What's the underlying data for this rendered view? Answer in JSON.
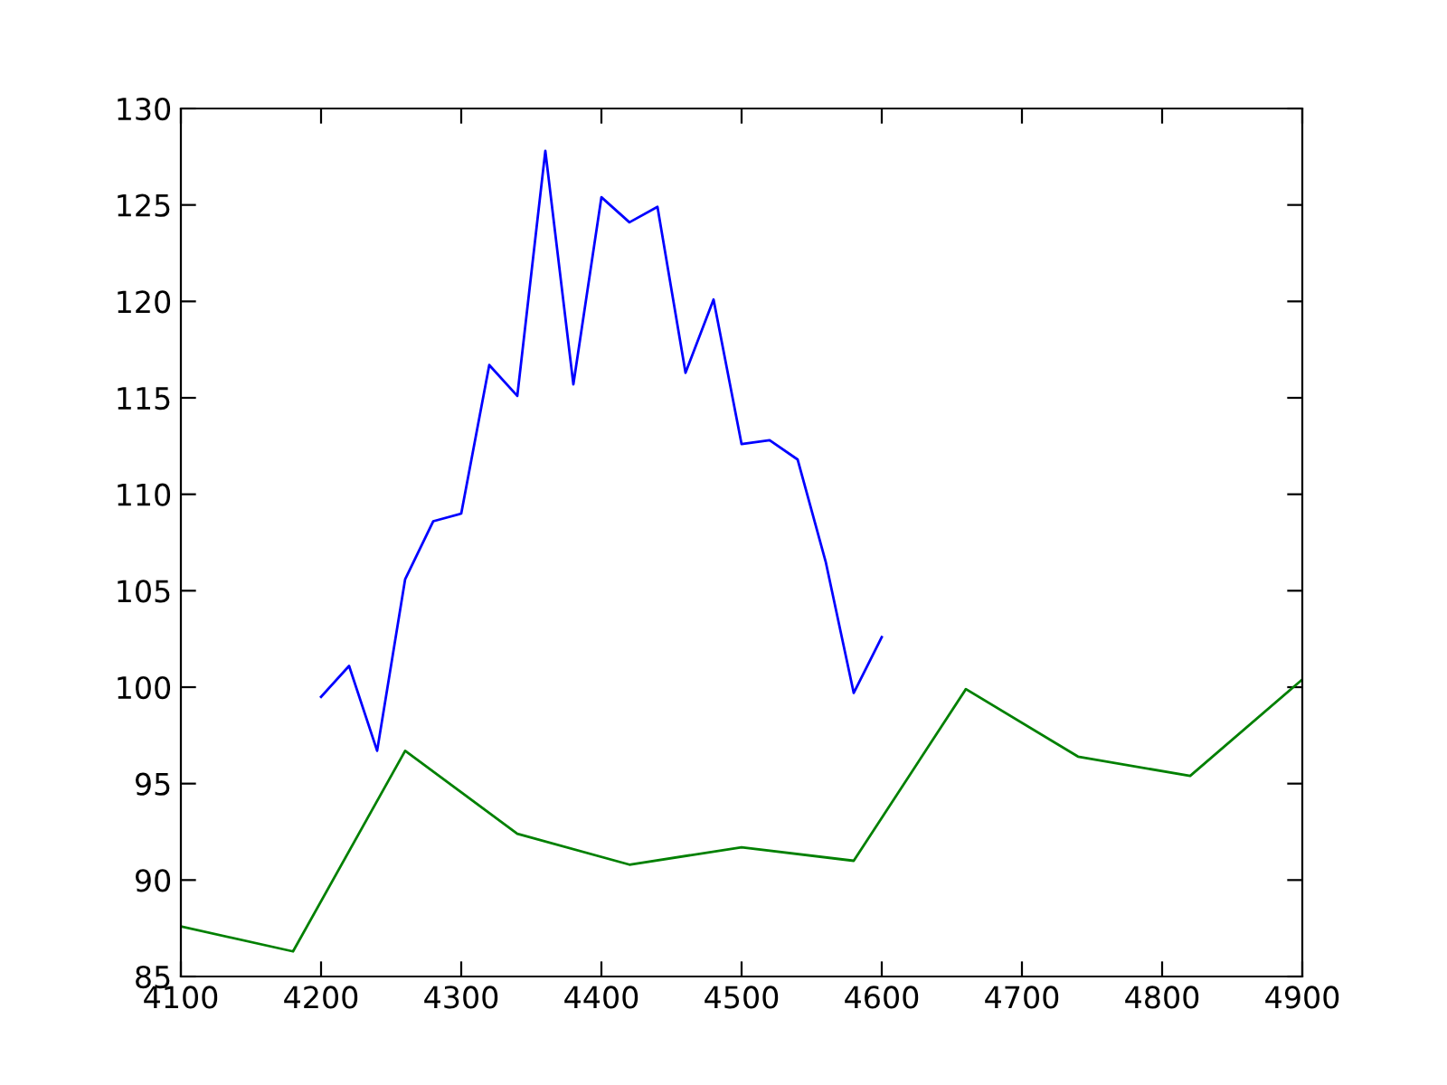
{
  "chart_data": {
    "type": "line",
    "xlim": [
      4100,
      4900
    ],
    "ylim": [
      85,
      130
    ],
    "xticks": [
      4100,
      4200,
      4300,
      4400,
      4500,
      4600,
      4700,
      4800,
      4900
    ],
    "yticks": [
      85,
      90,
      95,
      100,
      105,
      110,
      115,
      120,
      125,
      130
    ],
    "grid": false,
    "legend": false,
    "marker": "none",
    "line_style": "solid",
    "series": [
      {
        "color": "#0000ff",
        "x": [
          4200,
          4220,
          4240,
          4260,
          4280,
          4300,
          4320,
          4340,
          4360,
          4380,
          4400,
          4420,
          4440,
          4460,
          4480,
          4500,
          4520,
          4540,
          4560,
          4580,
          4600
        ],
        "values": [
          99.5,
          101.1,
          96.7,
          105.6,
          108.6,
          109.0,
          116.7,
          115.1,
          127.8,
          115.7,
          125.4,
          124.1,
          124.9,
          116.3,
          120.1,
          112.6,
          112.8,
          111.8,
          106.5,
          99.7,
          102.6
        ]
      },
      {
        "color": "#008000",
        "x": [
          4100,
          4180,
          4260,
          4340,
          4420,
          4500,
          4580,
          4660,
          4740,
          4820,
          4900
        ],
        "values": [
          87.6,
          86.3,
          96.7,
          92.4,
          90.8,
          91.7,
          91.0,
          99.9,
          96.4,
          95.4,
          100.4
        ]
      }
    ]
  }
}
